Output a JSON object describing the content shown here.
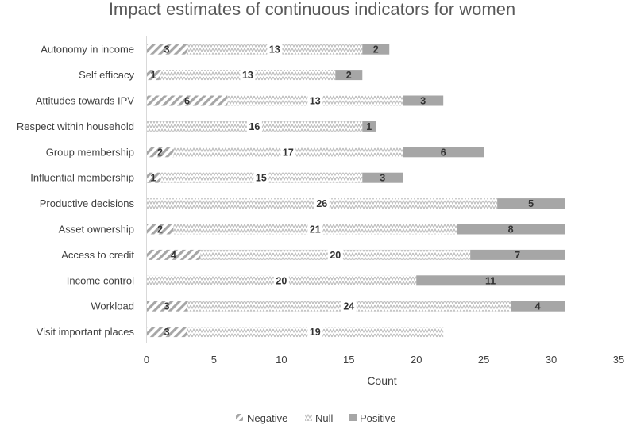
{
  "chart_data": {
    "type": "bar",
    "orientation": "horizontal",
    "stacked": true,
    "title": "Impact estimates of continuous indicators for women",
    "xlabel": "Count",
    "ylabel": "",
    "xlim": [
      0,
      35
    ],
    "xticks": [
      0,
      5,
      10,
      15,
      20,
      25,
      30,
      35
    ],
    "categories": [
      "Autonomy in income",
      "Self efficacy",
      "Attitudes towards IPV",
      "Respect within household",
      "Group membership",
      "Influential membership",
      "Productive decisions",
      "Asset ownership",
      "Access to credit",
      "Income control",
      "Workload",
      "Visit important places"
    ],
    "series": [
      {
        "name": "Negative",
        "pattern": "diagonal-hatch",
        "color": "#a6a6a6",
        "values": [
          3,
          1,
          6,
          0,
          2,
          1,
          0,
          2,
          4,
          0,
          3,
          3
        ]
      },
      {
        "name": "Null",
        "pattern": "zigzag",
        "color": "#bfbfbf",
        "values": [
          13,
          13,
          13,
          16,
          17,
          15,
          26,
          21,
          20,
          20,
          24,
          19
        ]
      },
      {
        "name": "Positive",
        "pattern": "solid",
        "color": "#a6a6a6",
        "values": [
          2,
          2,
          3,
          1,
          6,
          3,
          5,
          8,
          7,
          11,
          4,
          0
        ]
      }
    ],
    "legend_position": "bottom",
    "grid": false
  }
}
